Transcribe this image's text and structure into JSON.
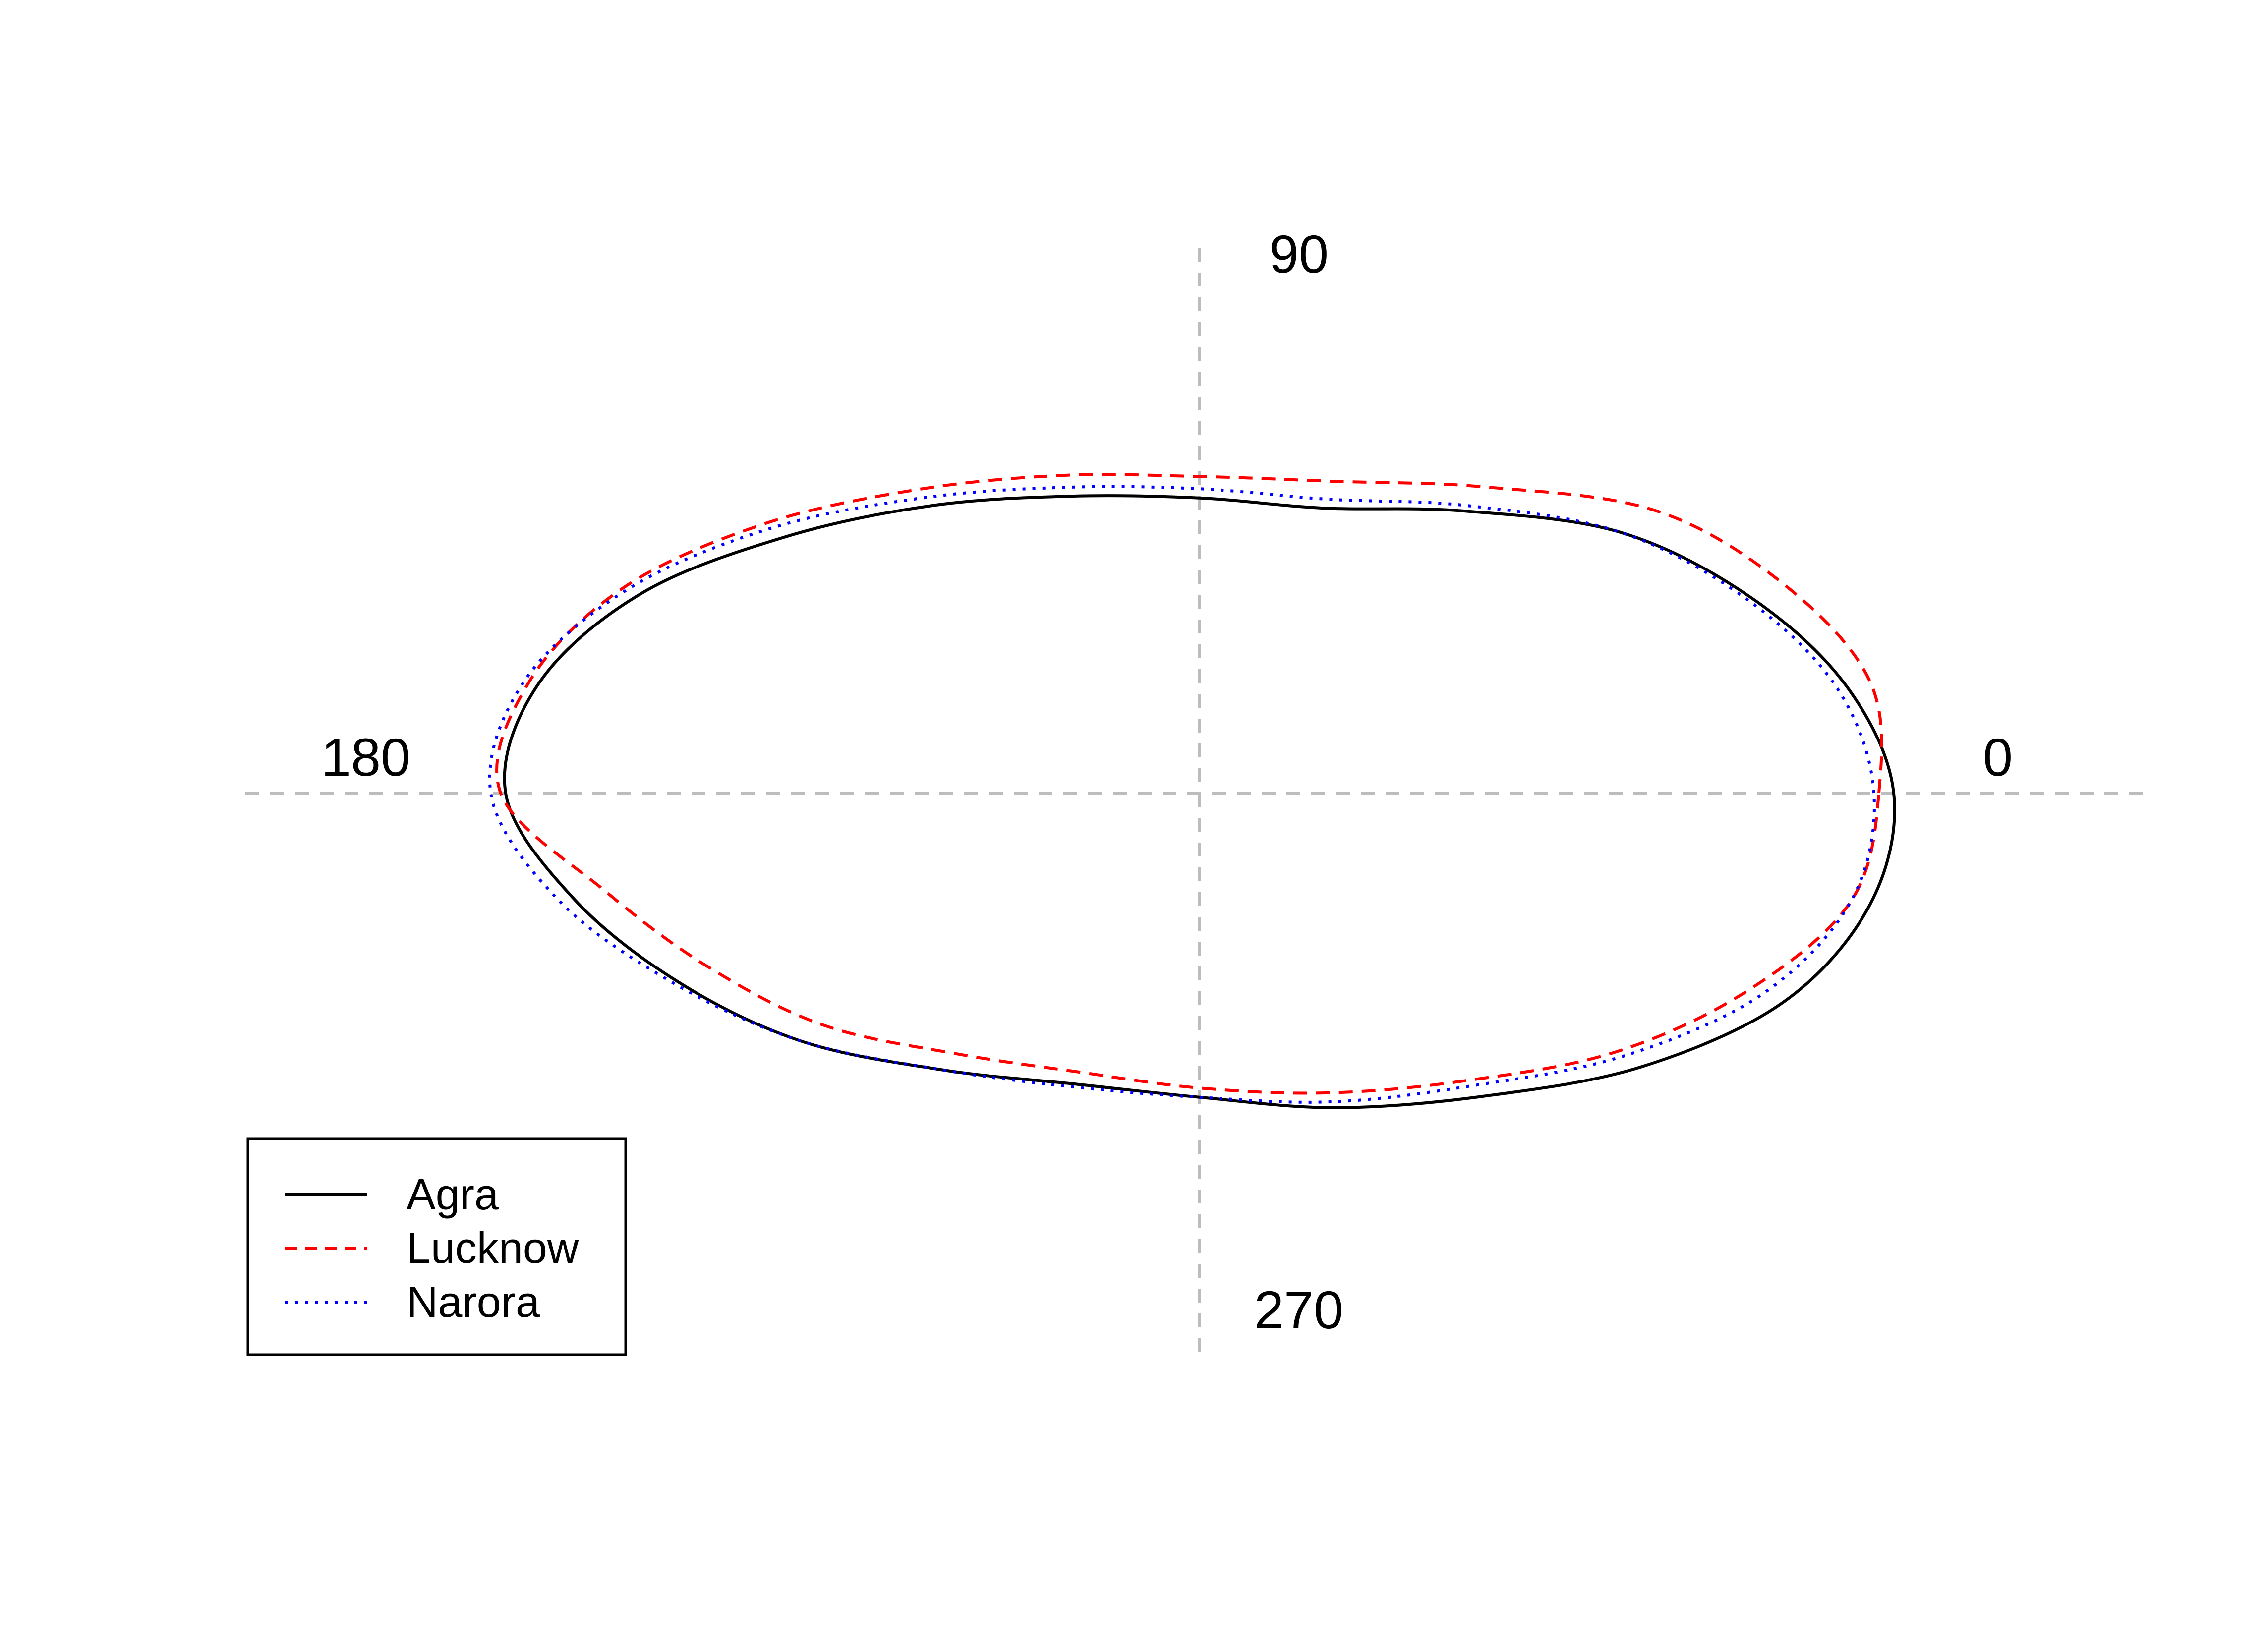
{
  "chart_data": {
    "type": "line",
    "title": "",
    "xlabel": "",
    "ylabel": "",
    "angle_labels": [
      "0",
      "90",
      "180",
      "270"
    ],
    "grid": true,
    "legend_position": "bottom-left",
    "x_unit": "degrees",
    "y_unit": "relative radius",
    "series": [
      {
        "name": "Agra",
        "color": "#000000",
        "line_style": "solid",
        "x": [
          0,
          15,
          30,
          45,
          60,
          75,
          90,
          105,
          120,
          135,
          150,
          165,
          180,
          195,
          210,
          225,
          240,
          255,
          270,
          285,
          300,
          315,
          330,
          345,
          360
        ],
        "y": [
          1.4,
          1.35,
          1.28,
          1.2,
          1.06,
          0.96,
          0.96,
          1.0,
          1.08,
          1.18,
          1.3,
          1.38,
          1.4,
          1.31,
          1.22,
          1.14,
          1.04,
          0.98,
          0.99,
          1.06,
          1.14,
          1.26,
          1.36,
          1.4,
          1.4
        ]
      },
      {
        "name": "Lucknow",
        "color": "#ff0000",
        "line_style": "dashed",
        "x": [
          0,
          15,
          30,
          45,
          60,
          75,
          90,
          105,
          120,
          135,
          150,
          165,
          180,
          195,
          210,
          225,
          240,
          255,
          270,
          285,
          300,
          315,
          330,
          345,
          360
        ],
        "y": [
          1.37,
          1.4,
          1.36,
          1.3,
          1.15,
          1.05,
          1.03,
          1.07,
          1.14,
          1.24,
          1.34,
          1.4,
          1.41,
          1.24,
          1.14,
          1.07,
          0.98,
          0.94,
          0.96,
          1.01,
          1.08,
          1.19,
          1.28,
          1.36,
          1.37
        ]
      },
      {
        "name": "Narora",
        "color": "#0000ff",
        "line_style": "dotted",
        "x": [
          0,
          15,
          30,
          45,
          60,
          75,
          90,
          105,
          120,
          135,
          150,
          165,
          180,
          195,
          210,
          225,
          240,
          255,
          270,
          285,
          300,
          315,
          330,
          345,
          360
        ],
        "y": [
          1.36,
          1.33,
          1.27,
          1.2,
          1.08,
          0.99,
          0.99,
          1.03,
          1.11,
          1.22,
          1.33,
          1.41,
          1.43,
          1.34,
          1.23,
          1.14,
          1.04,
          0.99,
          0.99,
          1.04,
          1.1,
          1.21,
          1.31,
          1.36,
          1.36
        ]
      }
    ]
  }
}
